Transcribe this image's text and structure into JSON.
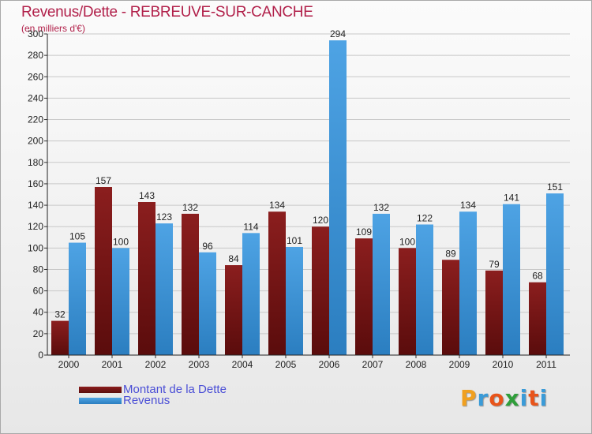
{
  "header": {
    "title": "Revenus/Dette - REBREUVE-SUR-CANCHE",
    "subtitle": "(en milliers d'€)"
  },
  "legend": {
    "debt_label": "Montant de la Dette",
    "revenue_label": "Revenus"
  },
  "logo": {
    "text": "Proxiti",
    "letters": [
      "P",
      "r",
      "o",
      "x",
      "i",
      "t",
      "i"
    ],
    "colors": [
      "#f0a020",
      "#3a9bd8",
      "#e8541a",
      "#2f9e3a",
      "#3a9bd8",
      "#e8541a",
      "#3a9bd8"
    ]
  },
  "colors": {
    "debt": "#8b1e1e",
    "debt_dark": "#5a0c0c",
    "revenue": "#4ea3e4",
    "revenue_dark": "#2b7ec0",
    "title": "#b1204a",
    "legend_text": "#4a4ed6"
  },
  "chart_data": {
    "type": "bar",
    "title": "Revenus/Dette - REBREUVE-SUR-CANCHE",
    "subtitle": "(en milliers d'€)",
    "categories": [
      "2000",
      "2001",
      "2002",
      "2003",
      "2004",
      "2005",
      "2006",
      "2007",
      "2008",
      "2009",
      "2010",
      "2011"
    ],
    "series": [
      {
        "name": "Montant de la Dette",
        "values": [
          32,
          157,
          143,
          132,
          84,
          134,
          120,
          109,
          100,
          89,
          79,
          68
        ]
      },
      {
        "name": "Revenus",
        "values": [
          105,
          100,
          123,
          96,
          114,
          101,
          294,
          132,
          122,
          134,
          141,
          151
        ]
      }
    ],
    "ylim": [
      0,
      300
    ],
    "yticks": [
      0,
      20,
      40,
      60,
      80,
      100,
      120,
      140,
      160,
      180,
      200,
      220,
      240,
      260,
      280,
      300
    ],
    "grid": true,
    "legend": "bottom-left",
    "xlabel": "",
    "ylabel": ""
  }
}
